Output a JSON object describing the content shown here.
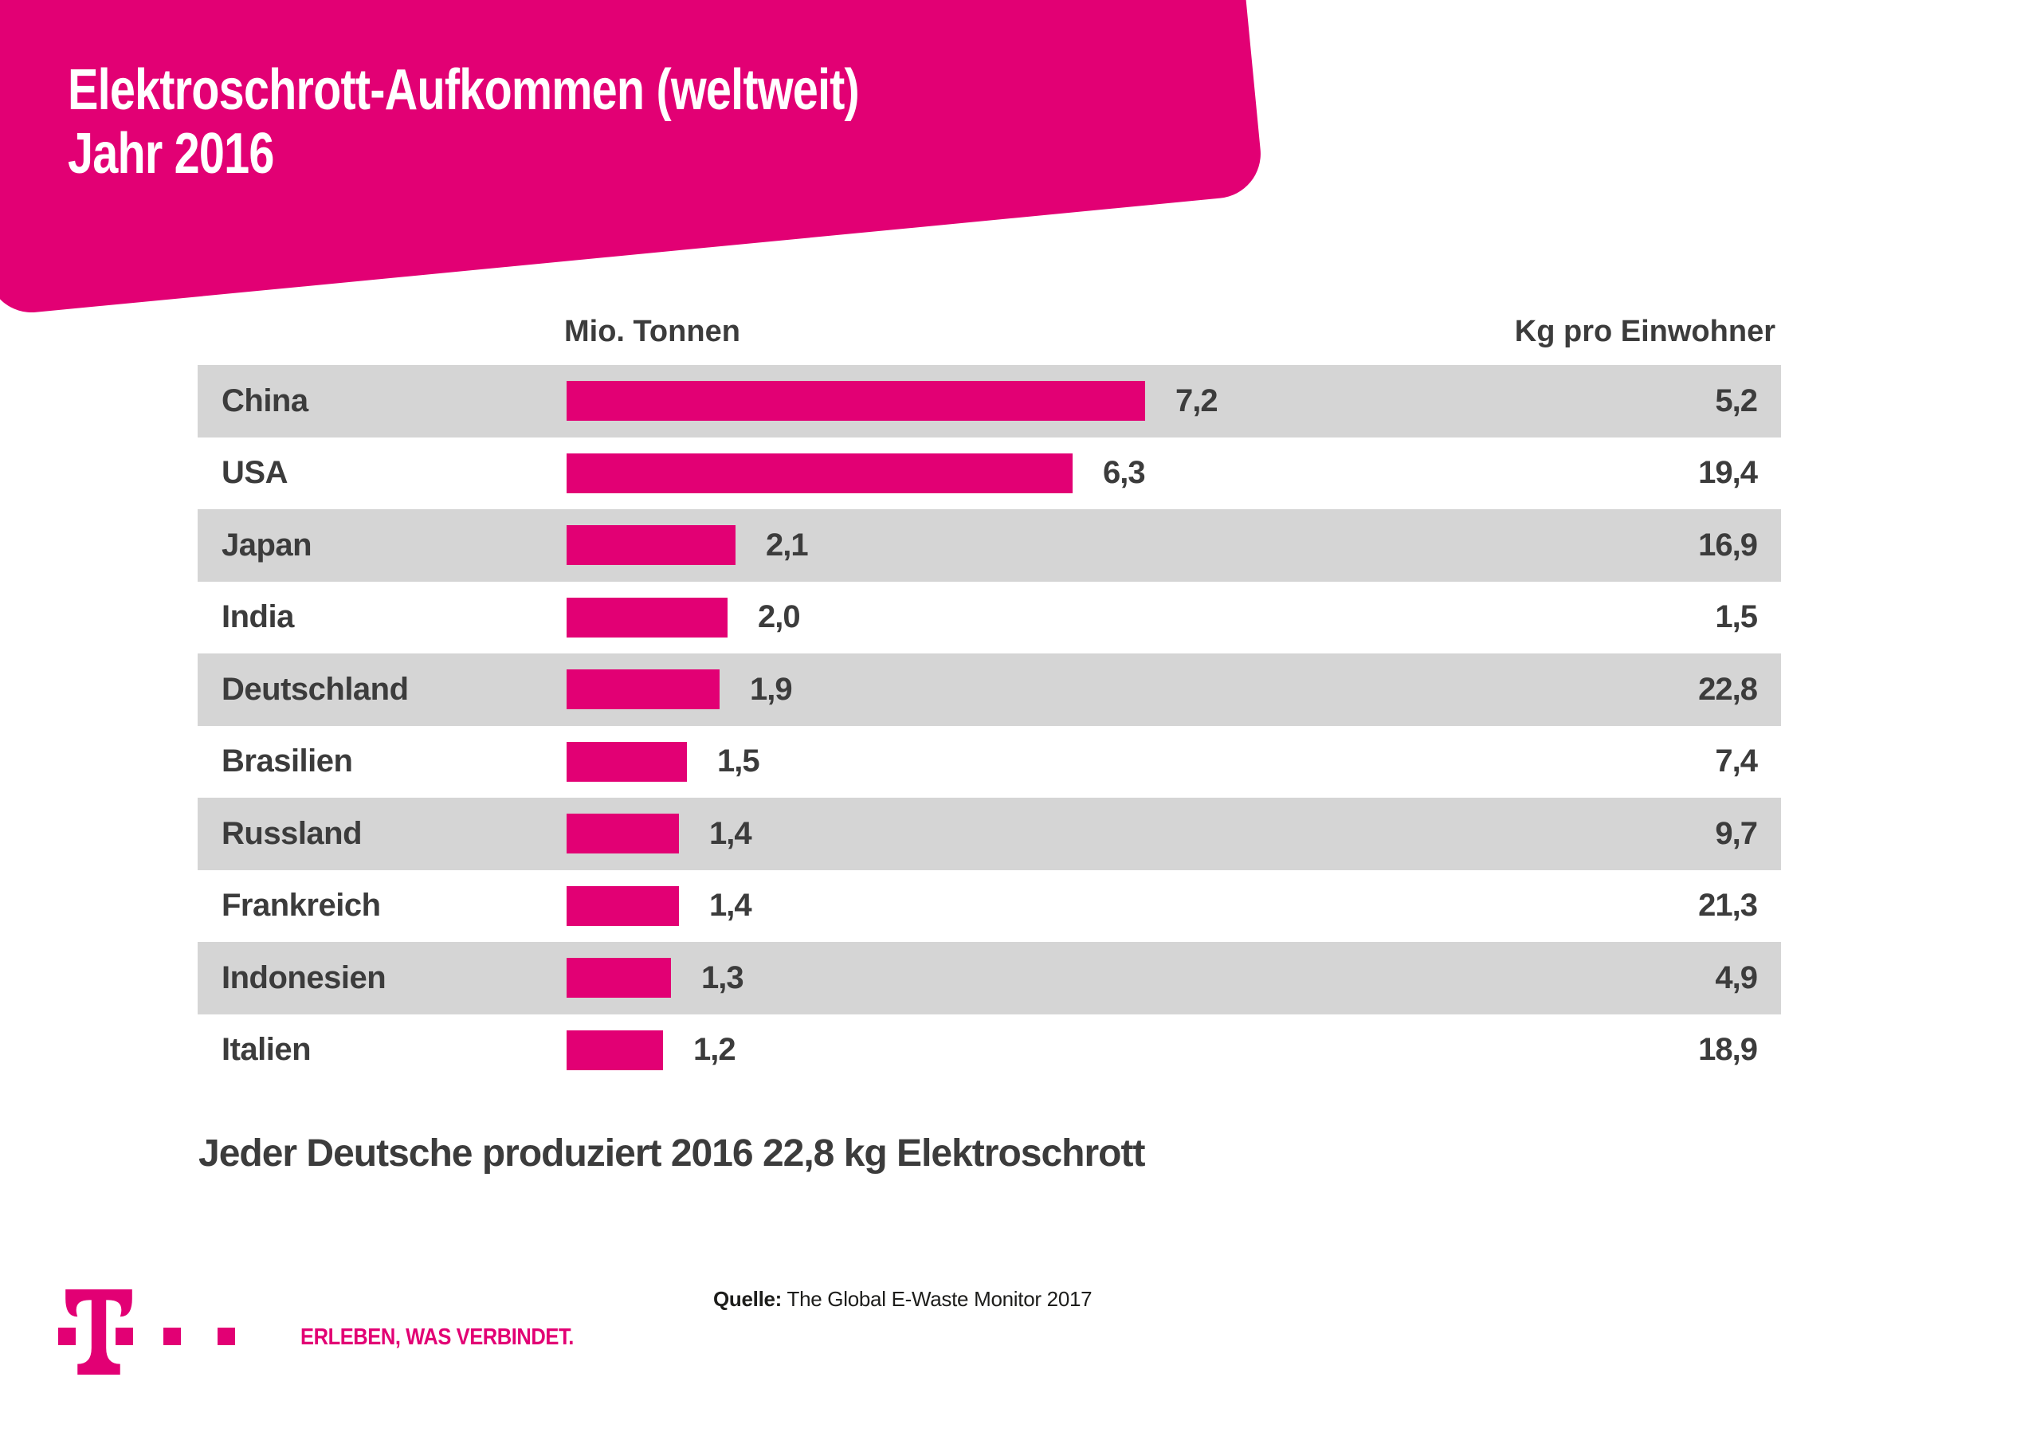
{
  "header": {
    "title_line1": "Elektroschrott-Aufkommen (weltweit)",
    "title_line2": "Jahr 2016"
  },
  "columns": {
    "left_header": "Mio. Tonnen",
    "right_header": "Kg pro Einwohner"
  },
  "chart_data": {
    "type": "bar",
    "title": "Elektroschrott-Aufkommen (weltweit) Jahr 2016",
    "categories": [
      "China",
      "USA",
      "Japan",
      "India",
      "Deutschland",
      "Brasilien",
      "Russland",
      "Frankreich",
      "Indonesien",
      "Italien"
    ],
    "series": [
      {
        "name": "Mio. Tonnen",
        "values": [
          7.2,
          6.3,
          2.1,
          2.0,
          1.9,
          1.5,
          1.4,
          1.4,
          1.3,
          1.2
        ],
        "labels": [
          "7,2",
          "6,3",
          "2,1",
          "2,0",
          "1,9",
          "1,5",
          "1,4",
          "1,4",
          "1,3",
          "1,2"
        ]
      },
      {
        "name": "Kg pro Einwohner",
        "values": [
          5.2,
          19.4,
          16.9,
          1.5,
          22.8,
          7.4,
          9.7,
          21.3,
          4.9,
          18.9
        ],
        "labels": [
          "5,2",
          "19,4",
          "16,9",
          "1,5",
          "22,8",
          "7,4",
          "9,7",
          "21,3",
          "4,9",
          "18,9"
        ]
      }
    ],
    "xlim": [
      0,
      7.2
    ],
    "grid": false,
    "legend_position": "none",
    "stripe_rows": "every other row starting with first (China)"
  },
  "annotation": "Jeder Deutsche produziert 2016 22,8 kg Elektroschrott",
  "source": {
    "label": "Quelle:",
    "text": " The Global E-Waste Monitor 2017"
  },
  "footer": {
    "claim": "ERLEBEN, WAS VERBINDET.",
    "logo": "telekom-t-logo"
  },
  "colors": {
    "magenta": "#E20074",
    "row_stripe": "#D5D5D5",
    "text_dark": "#3C3C3C",
    "source_black": "#1D1D1B",
    "background": "#FFFFFF"
  }
}
